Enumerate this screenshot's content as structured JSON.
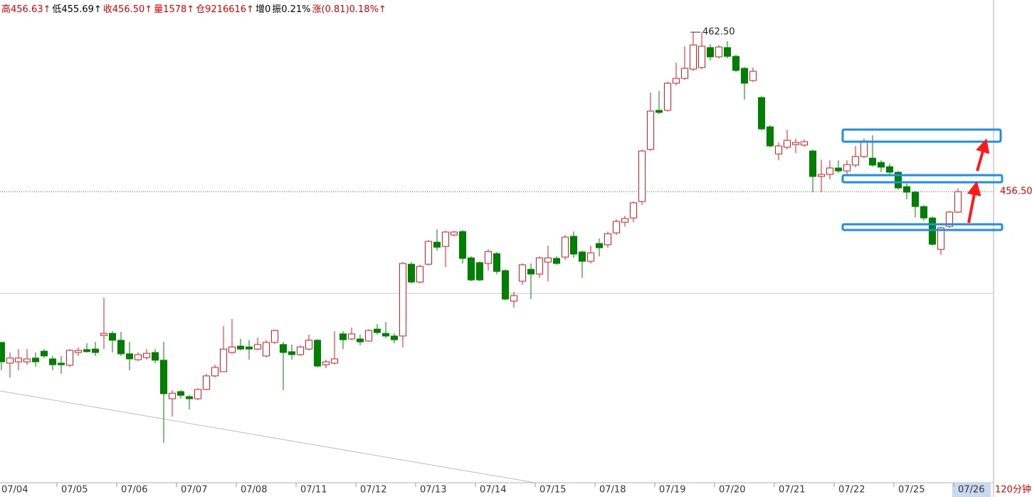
{
  "chart_data": {
    "type": "candlestick",
    "header": [
      "高456.63↑",
      "低455.69↑",
      "收456.50↑",
      "量1578↑",
      "仓9216616↑",
      "增0",
      "振0.21%",
      "涨(0.81)0.18%↑"
    ],
    "header_colors": [
      "#e00000",
      "#000000",
      "#e00000",
      "#e00000",
      "#e00000",
      "#000000",
      "#000000",
      "#e00000"
    ],
    "up_color": "#e4181d",
    "down_color": "#008000",
    "open": [
      450.83,
      450.05,
      450.1,
      450.1,
      450.24,
      450.5,
      450.21,
      450.05,
      449.97,
      450.45,
      450.56,
      450.58,
      451.09,
      451.17,
      450.91,
      450.4,
      450.18,
      450.26,
      450.45,
      450.16,
      448.71,
      448.98,
      448.79,
      448.71,
      449.06,
      449.57,
      449.73,
      450.45,
      450.69,
      450.66,
      450.58,
      450.32,
      450.83,
      450.75,
      450.48,
      450.37,
      450.58,
      450.91,
      449.99,
      450.05,
      451.15,
      450.96,
      450.96,
      450.88,
      451.33,
      451.17,
      451.07,
      451.07,
      453.77,
      453.1,
      453.77,
      454.6,
      454.44,
      454.87,
      455.0,
      454.01,
      453.83,
      453.8,
      454.17,
      453.53,
      452.38,
      453.13,
      453.58,
      453.4,
      453.85,
      453.99,
      454.04,
      454.82,
      454.23,
      453.88,
      454.55,
      454.5,
      454.95,
      455.35,
      455.51,
      456.13,
      458.09,
      459.56,
      459.56,
      460.58,
      460.76,
      461.11,
      461.17,
      461.92,
      461.57,
      461.92,
      461.59,
      461.14,
      460.68,
      460.04,
      458.94,
      457.92,
      458.17,
      458.27,
      458.25,
      458.03,
      457.07,
      457.15,
      457.39,
      457.28,
      457.5,
      457.82,
      457.76,
      457.6,
      457.44,
      457.23,
      456.69,
      456.48,
      455.94,
      455.51,
      454.33,
      455.19,
      455.73
    ],
    "high": [
      450.83,
      450.45,
      450.58,
      450.58,
      450.45,
      450.58,
      450.32,
      450.32,
      450.58,
      450.64,
      450.8,
      450.85,
      452.51,
      451.25,
      451.23,
      450.85,
      450.45,
      450.58,
      450.58,
      450.85,
      449.03,
      449.03,
      448.84,
      449.11,
      449.65,
      449.99,
      451.44,
      451.71,
      450.96,
      450.91,
      451.01,
      450.91,
      451.31,
      450.85,
      450.75,
      450.72,
      451.12,
      450.96,
      450.18,
      451.25,
      451.25,
      451.39,
      451.12,
      451.33,
      451.52,
      451.6,
      451.17,
      453.85,
      453.85,
      453.75,
      454.68,
      455.08,
      455.03,
      455.03,
      455.06,
      454.07,
      453.88,
      454.33,
      454.23,
      453.58,
      452.73,
      453.8,
      453.8,
      454.07,
      454.47,
      454.07,
      454.87,
      455.0,
      454.28,
      454.47,
      454.74,
      455.0,
      455.46,
      455.59,
      456.13,
      458.09,
      460.23,
      460.28,
      460.63,
      461.35,
      461.97,
      462.5,
      462.5,
      462.05,
      462.02,
      462.16,
      461.65,
      461.19,
      461.17,
      460.09,
      459.0,
      458.35,
      458.83,
      458.49,
      458.46,
      458.09,
      457.71,
      457.68,
      457.68,
      457.68,
      458.22,
      458.49,
      458.62,
      457.68,
      457.55,
      457.28,
      456.8,
      456.53,
      456.0,
      455.57,
      455.19,
      455.78,
      456.63
    ],
    "low": [
      449.78,
      449.51,
      449.78,
      449.99,
      449.91,
      450.24,
      449.78,
      449.65,
      449.91,
      450.32,
      450.45,
      450.32,
      450.58,
      450.45,
      450.32,
      449.78,
      450.13,
      450.18,
      450.05,
      447.05,
      448.04,
      448.71,
      448.31,
      448.66,
      449.03,
      449.51,
      449.73,
      450.4,
      450.53,
      450.18,
      450.53,
      450.26,
      450.77,
      449.03,
      450.18,
      450.32,
      450.53,
      449.89,
      449.86,
      449.99,
      450.58,
      450.91,
      450.72,
      450.85,
      451.12,
      450.99,
      450.8,
      450.64,
      453.05,
      453.05,
      453.72,
      454.28,
      453.66,
      454.82,
      453.8,
      453.13,
      453.13,
      453.53,
      453.4,
      452.41,
      452.14,
      453.0,
      452.46,
      453.26,
      453.13,
      453.75,
      453.93,
      454.01,
      453.26,
      453.8,
      454.07,
      454.39,
      454.87,
      455.19,
      455.35,
      456.0,
      458.03,
      459.42,
      459.5,
      460.5,
      460.71,
      461.03,
      461.11,
      461.43,
      461.51,
      461.51,
      461.0,
      459.96,
      460.63,
      458.81,
      458.17,
      457.68,
      458.09,
      457.95,
      458.19,
      456.48,
      456.48,
      456.96,
      457.2,
      457.15,
      457.42,
      457.76,
      457.44,
      457.23,
      457.15,
      456.58,
      456.21,
      455.54,
      455.41,
      454.47,
      454.12,
      455.14,
      455.69
    ],
    "close": [
      450.1,
      450.24,
      450.24,
      450.21,
      450.1,
      450.32,
      449.99,
      449.99,
      450.53,
      450.53,
      450.48,
      450.45,
      451.17,
      450.91,
      450.4,
      450.21,
      450.37,
      450.42,
      450.16,
      448.9,
      448.92,
      448.84,
      448.71,
      449.06,
      449.57,
      449.89,
      450.58,
      450.66,
      450.58,
      450.58,
      450.75,
      450.83,
      451.28,
      450.45,
      450.37,
      450.66,
      450.91,
      449.94,
      450.1,
      450.21,
      450.93,
      451.15,
      450.85,
      451.28,
      451.2,
      451.07,
      450.93,
      453.8,
      453.1,
      453.69,
      454.63,
      454.41,
      454.98,
      454.98,
      453.99,
      453.18,
      453.18,
      454.25,
      453.5,
      452.46,
      452.59,
      453.75,
      453.4,
      454.01,
      454.01,
      453.8,
      454.79,
      454.15,
      453.88,
      454.2,
      454.39,
      454.92,
      455.38,
      455.49,
      456.08,
      458.03,
      459.53,
      459.48,
      460.58,
      460.76,
      461.14,
      462.02,
      461.97,
      461.57,
      461.94,
      461.59,
      461.06,
      460.58,
      461.03,
      458.86,
      458.22,
      458.22,
      458.43,
      458.35,
      458.38,
      457.07,
      457.15,
      457.39,
      457.28,
      457.52,
      457.82,
      458.41,
      457.5,
      457.42,
      457.23,
      456.64,
      456.48,
      455.94,
      455.51,
      454.52,
      455.14,
      455.73,
      456.5
    ],
    "ylim": [
      445.55,
      463.71
    ],
    "xticks": [
      {
        "value": 0,
        "label": "07/04"
      },
      {
        "value": 7,
        "label": "07/05"
      },
      {
        "value": 14,
        "label": "07/06"
      },
      {
        "value": 21,
        "label": "07/07"
      },
      {
        "value": 28,
        "label": "07/08"
      },
      {
        "value": 35,
        "label": "07/11"
      },
      {
        "value": 42,
        "label": "07/12"
      },
      {
        "value": 49,
        "label": "07/13"
      },
      {
        "value": 56,
        "label": "07/14"
      },
      {
        "value": 63,
        "label": "07/15"
      },
      {
        "value": 70,
        "label": "07/18"
      },
      {
        "value": 77,
        "label": "07/19"
      },
      {
        "value": 84,
        "label": "07/20"
      },
      {
        "value": 91,
        "label": "07/21"
      },
      {
        "value": 98,
        "label": "07/22"
      },
      {
        "value": 105,
        "label": "07/25"
      },
      {
        "value": 112,
        "label": "07/26"
      }
    ],
    "last_price": {
      "value": 456.5,
      "label": "456.50"
    },
    "max_marker": {
      "value": 462.5,
      "label": "462.50"
    },
    "reference_line": 452.67,
    "period_label": "120分钟"
  }
}
